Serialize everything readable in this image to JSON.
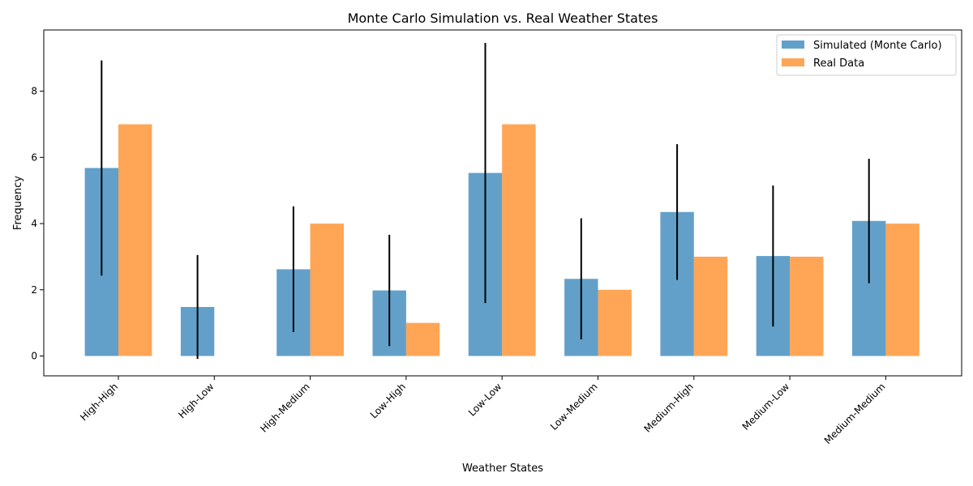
{
  "chart_data": {
    "type": "bar",
    "title": "Monte Carlo Simulation vs. Real Weather States",
    "xlabel": "Weather States",
    "ylabel": "Frequency",
    "categories": [
      "High-High",
      "High-Low",
      "High-Medium",
      "Low-High",
      "Low-Low",
      "Low-Medium",
      "Medium-High",
      "Medium-Low",
      "Medium-Medium"
    ],
    "ylim": [
      -0.6,
      9.85
    ],
    "yticks": [
      0,
      2,
      4,
      6,
      8
    ],
    "grid": false,
    "legend_position": "top-right",
    "series": [
      {
        "name": "Simulated (Monte Carlo)",
        "color": "#1f77b4",
        "opacity": 0.7,
        "values": [
          5.68,
          1.48,
          2.62,
          1.98,
          5.53,
          2.33,
          4.35,
          3.02,
          4.08
        ],
        "error": [
          3.25,
          1.57,
          1.9,
          1.68,
          3.93,
          1.83,
          2.05,
          2.13,
          1.88
        ]
      },
      {
        "name": "Real Data",
        "color": "#ff7f0e",
        "opacity": 0.7,
        "values": [
          7,
          0,
          4,
          1,
          7,
          2,
          3,
          3,
          4
        ]
      }
    ]
  }
}
